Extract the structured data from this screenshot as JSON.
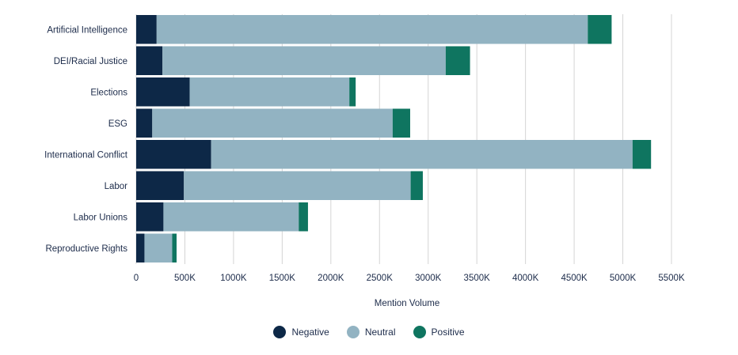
{
  "chart_data": {
    "type": "bar",
    "orientation": "horizontal",
    "stacked": true,
    "categories": [
      "Artificial Intelligence",
      "DEI/Racial Justice",
      "Elections",
      "ESG",
      "International Conflict",
      "Labor",
      "Labor Unions",
      "Reproductive Rights"
    ],
    "series": [
      {
        "name": "Negative",
        "color": "#0d2847",
        "values": [
          210000,
          270000,
          550000,
          165000,
          770000,
          490000,
          280000,
          85000
        ]
      },
      {
        "name": "Neutral",
        "color": "#92b3c2",
        "values": [
          4430000,
          2910000,
          1640000,
          2470000,
          4330000,
          2330000,
          1390000,
          285000
        ]
      },
      {
        "name": "Positive",
        "color": "#0f7560",
        "values": [
          245000,
          250000,
          65000,
          180000,
          190000,
          125000,
          95000,
          45000
        ]
      }
    ],
    "xlabel": "Mention Volume",
    "ylabel": "",
    "xlim": [
      0,
      5500000
    ],
    "xticks": [
      "0",
      "500K",
      "1000K",
      "1500K",
      "2000K",
      "2500K",
      "3000K",
      "3500K",
      "4000K",
      "4500K",
      "5000K",
      "5500K"
    ],
    "grid": "vertical",
    "legend_position": "bottom"
  }
}
